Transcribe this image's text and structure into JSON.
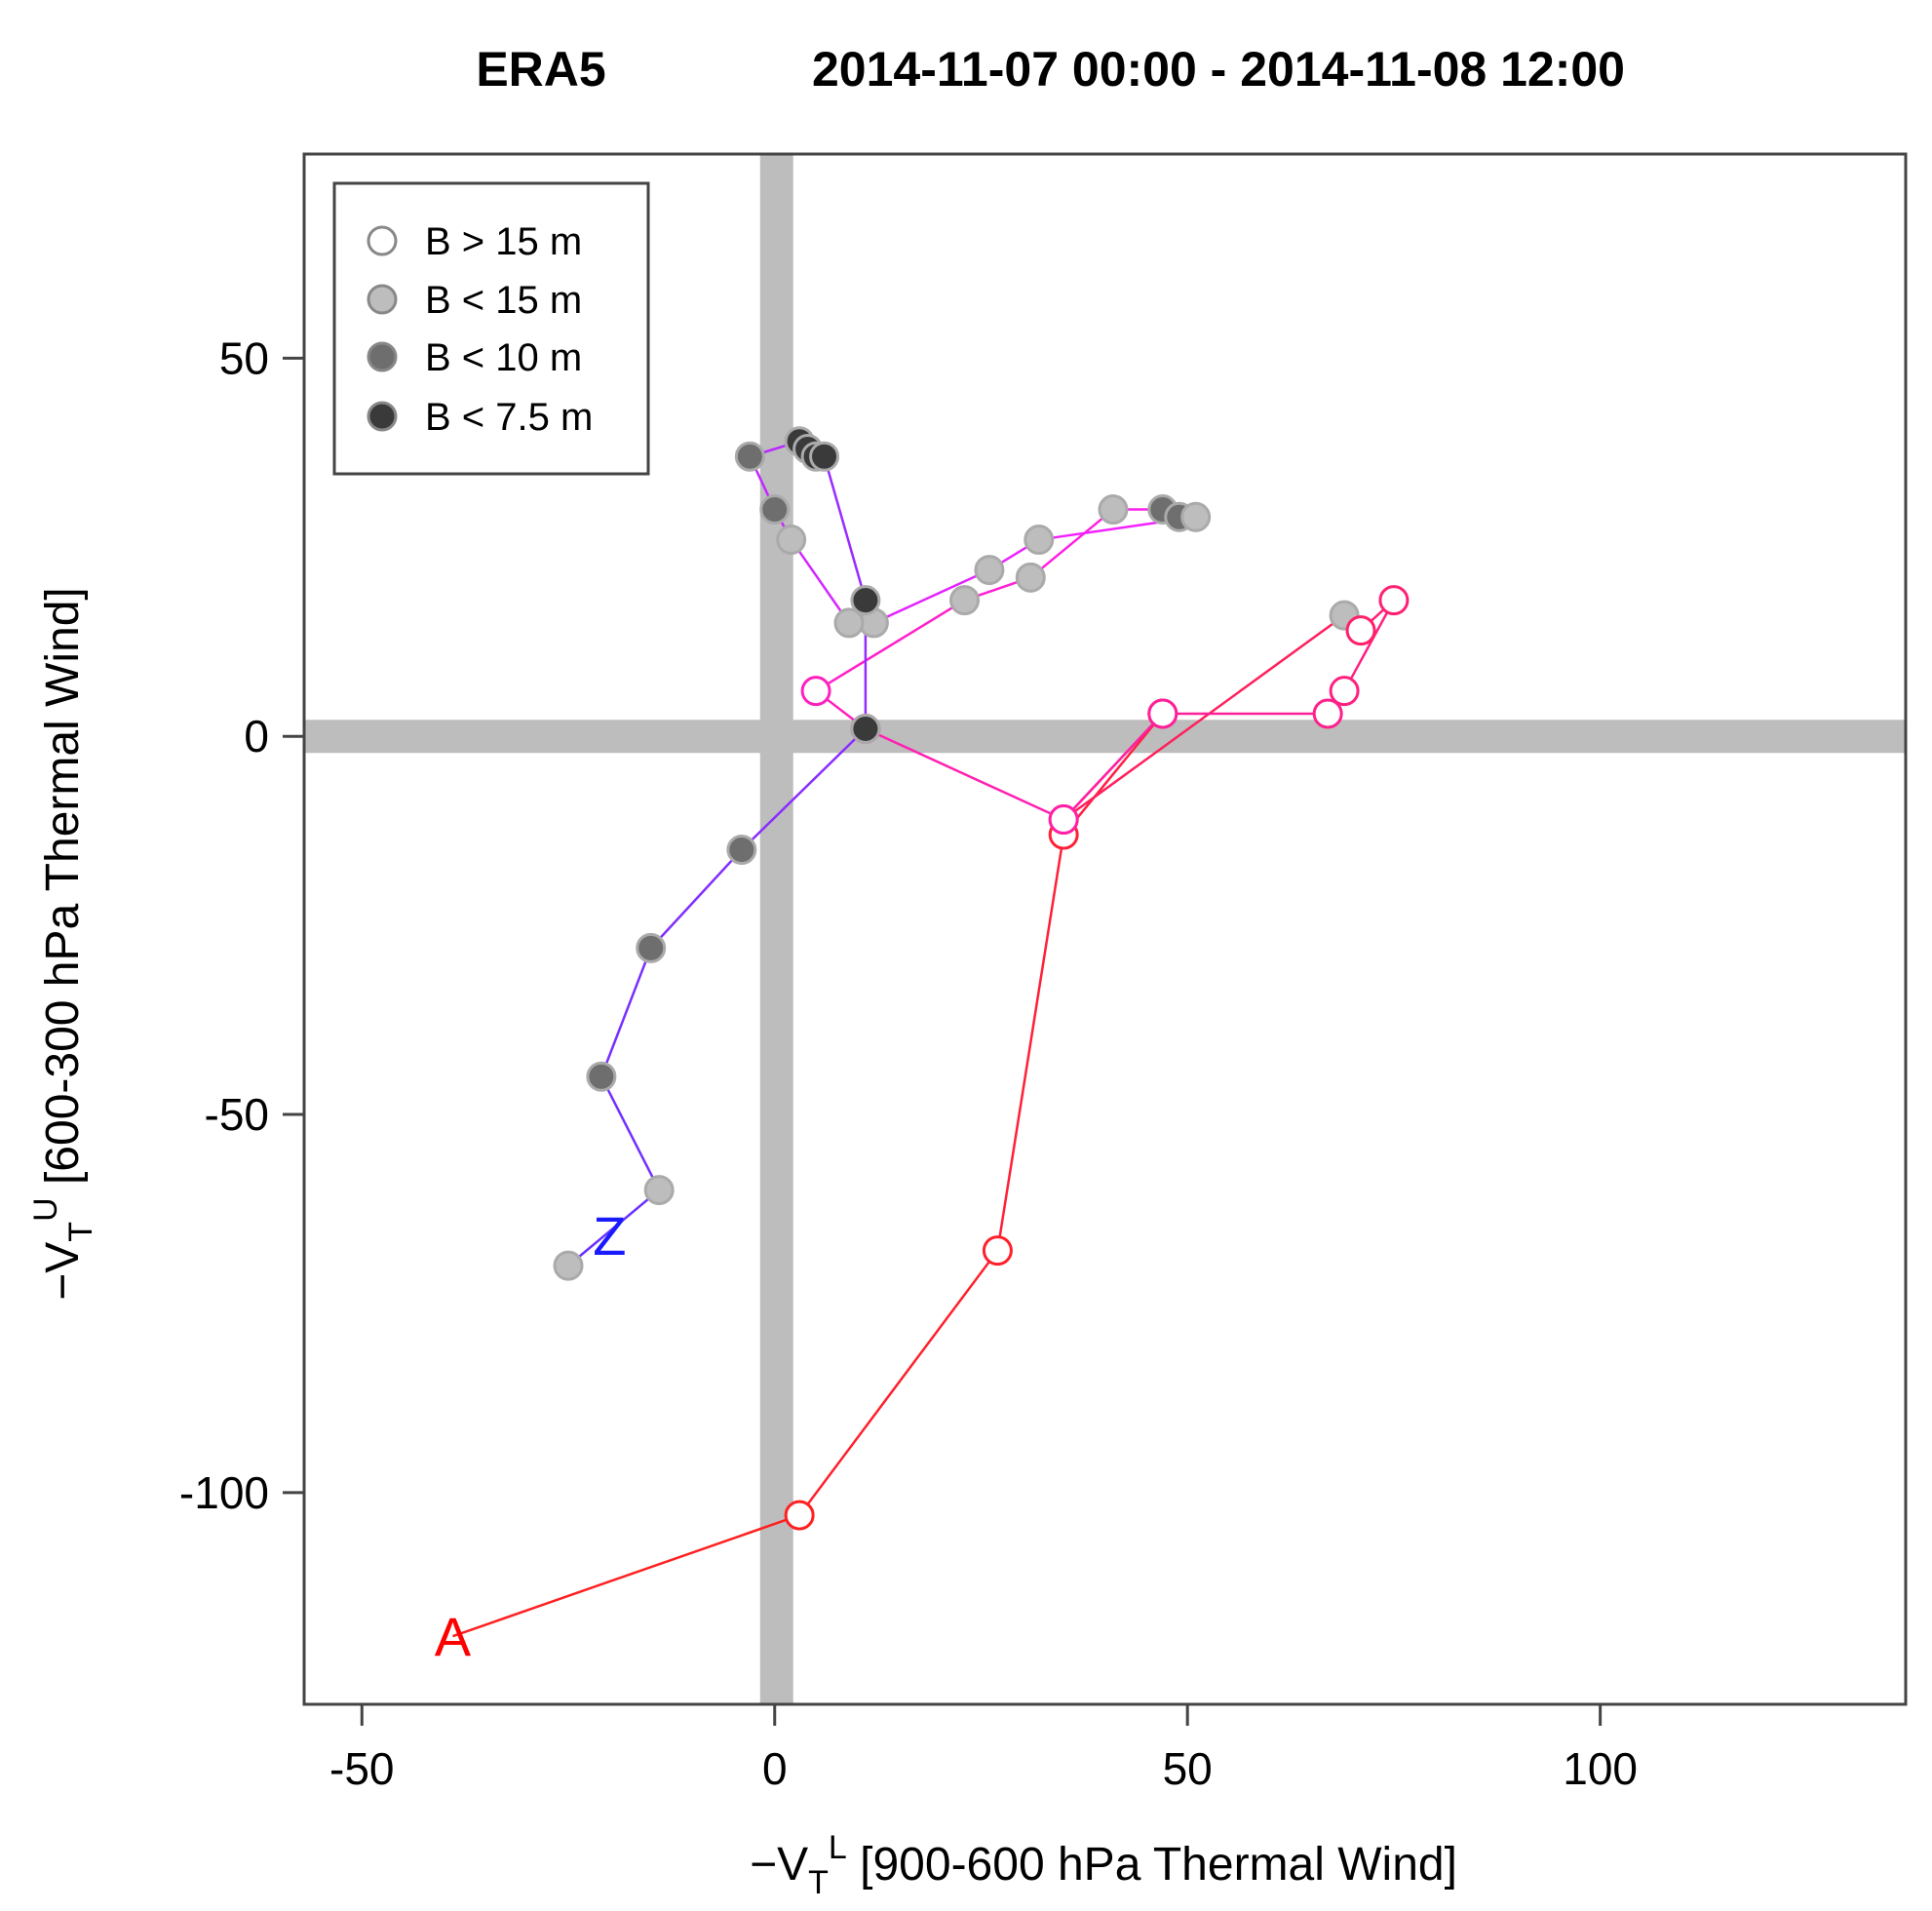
{
  "chart_data": {
    "type": "scatter",
    "title_left": "ERA5",
    "title_right": "2014-11-07 00:00 - 2014-11-08 12:00",
    "xlabel": {
      "prefix": "−V",
      "sub": "T",
      "sup": "L",
      "rest": " [900-600 hPa Thermal Wind]"
    },
    "ylabel": {
      "prefix": "−V",
      "sub": "T",
      "sup": "U",
      "rest": " [600-300 hPa Thermal Wind]"
    },
    "xlim": [
      -57,
      137
    ],
    "ylim": [
      -128,
      77
    ],
    "xticks": [
      -50,
      0,
      50,
      100
    ],
    "yticks": [
      -100,
      -50,
      0,
      50
    ],
    "xtick_labels": [
      "-50",
      "0",
      "50",
      "100"
    ],
    "ytick_labels": [
      "-100",
      "-50",
      "0",
      "50"
    ],
    "zero_lines": true,
    "legend": {
      "placement": "top-left",
      "entries": [
        {
          "label": "B > 15 m",
          "fill": "#ffffff"
        },
        {
          "label": "B < 15 m",
          "fill": "#bdbdbd"
        },
        {
          "label": "B < 10 m",
          "fill": "#6e6e6e"
        },
        {
          "label": "B < 7.5 m",
          "fill": "#3a3a3a"
        }
      ]
    },
    "start_label": {
      "text": "A",
      "x": -39,
      "y": -119,
      "color": "#ff0000"
    },
    "end_label": {
      "text": "Z",
      "x": -20,
      "y": -66,
      "color": "#1a1aff"
    },
    "colors": {
      "start": "#ff2020",
      "mid": "#ff20ff",
      "end": "#6a30ff",
      "marker_edge": "#aaaaaa"
    },
    "points": [
      {
        "x": 3,
        "y": -103,
        "class": 0
      },
      {
        "x": 27,
        "y": -68,
        "class": 0
      },
      {
        "x": 35,
        "y": -13,
        "class": 0
      },
      {
        "x": 47,
        "y": 3,
        "class": 0
      },
      {
        "x": 35,
        "y": -11,
        "class": 0
      },
      {
        "x": 69,
        "y": 16,
        "class": 1
      },
      {
        "x": 71,
        "y": 14,
        "class": 0
      },
      {
        "x": 75,
        "y": 18,
        "class": 0
      },
      {
        "x": 69,
        "y": 6,
        "class": 0
      },
      {
        "x": 67,
        "y": 3,
        "class": 0
      },
      {
        "x": 47,
        "y": 3,
        "class": 0
      },
      {
        "x": 35,
        "y": -11,
        "class": 0
      },
      {
        "x": 11,
        "y": 1,
        "class": 0
      },
      {
        "x": 5,
        "y": 6,
        "class": 0
      },
      {
        "x": 23,
        "y": 18,
        "class": 1
      },
      {
        "x": 31,
        "y": 21,
        "class": 1
      },
      {
        "x": 41,
        "y": 30,
        "class": 1
      },
      {
        "x": 47,
        "y": 30,
        "class": 2
      },
      {
        "x": 49,
        "y": 29,
        "class": 2
      },
      {
        "x": 51,
        "y": 29,
        "class": 1
      },
      {
        "x": 32,
        "y": 26,
        "class": 1
      },
      {
        "x": 26,
        "y": 22,
        "class": 1
      },
      {
        "x": 12,
        "y": 15,
        "class": 1
      },
      {
        "x": 9,
        "y": 15,
        "class": 1
      },
      {
        "x": 2,
        "y": 26,
        "class": 1
      },
      {
        "x": 0,
        "y": 30,
        "class": 2
      },
      {
        "x": -3,
        "y": 37,
        "class": 2
      },
      {
        "x": 3,
        "y": 39,
        "class": 3
      },
      {
        "x": 4,
        "y": 38,
        "class": 3
      },
      {
        "x": 5,
        "y": 37,
        "class": 3
      },
      {
        "x": 6,
        "y": 37,
        "class": 3
      },
      {
        "x": 11,
        "y": 18,
        "class": 3
      },
      {
        "x": 11,
        "y": 1,
        "class": 3
      },
      {
        "x": -4,
        "y": -15,
        "class": 2
      },
      {
        "x": -15,
        "y": -28,
        "class": 2
      },
      {
        "x": -21,
        "y": -45,
        "class": 2
      },
      {
        "x": -14,
        "y": -60,
        "class": 1
      },
      {
        "x": -25,
        "y": -70,
        "class": 1
      }
    ]
  }
}
